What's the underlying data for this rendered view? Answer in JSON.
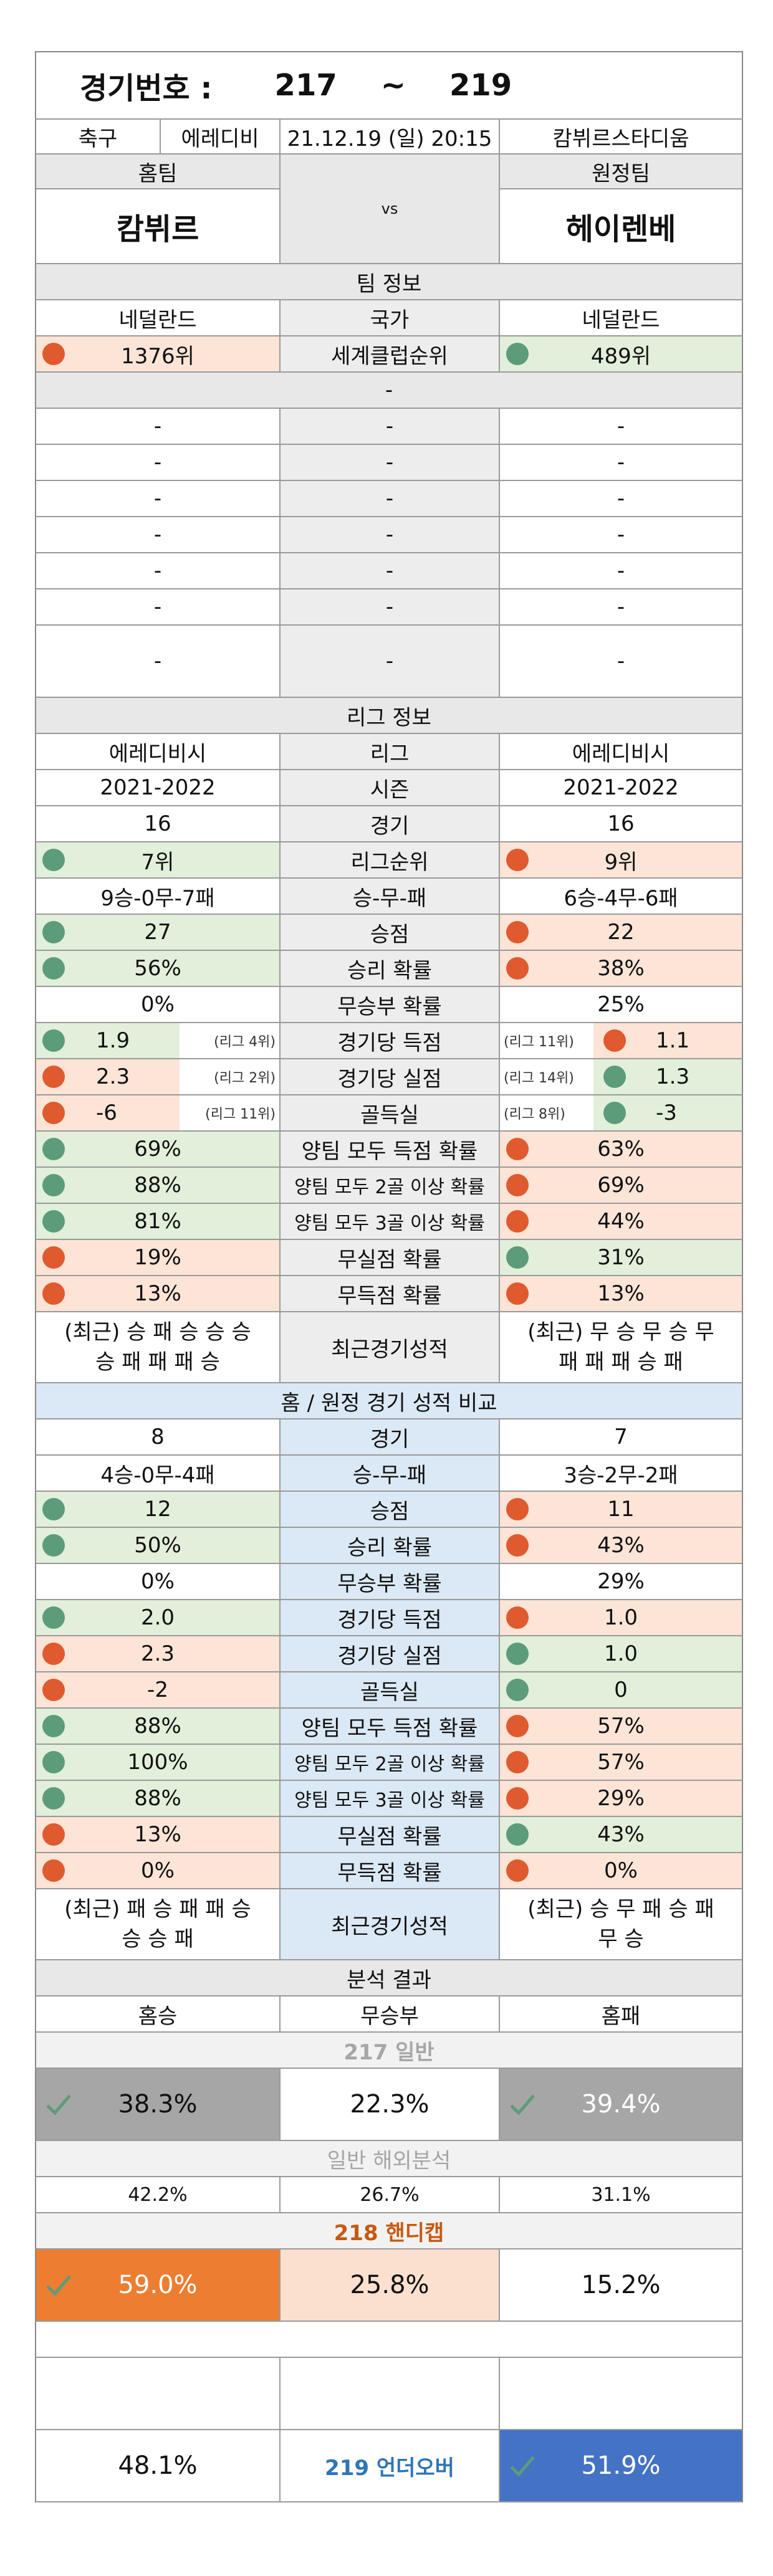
{
  "header": {
    "label": "경기번호 :",
    "from": "217",
    "tilde": "~",
    "to": "219"
  },
  "match": {
    "sport": "축구",
    "league": "에레디비",
    "datetime": "21.12.19 (일) 20:15",
    "venue": "캄뷔르스타디움"
  },
  "teams": {
    "home_label": "홈팀",
    "away_label": "원정팀",
    "home": "캄뷔르",
    "vs": "vs",
    "away": "헤이렌베"
  },
  "team_info": {
    "title": "팀 정보",
    "country": {
      "home": "네덜란드",
      "label": "국가",
      "away": "네덜란드"
    },
    "ranking": {
      "home": "1376위",
      "label": "세계클럽순위",
      "away": "489위"
    },
    "dash": "-"
  },
  "league_info": {
    "title": "리그 정보",
    "league": {
      "home": "에레디비시",
      "label": "리그",
      "away": "에레디비시"
    },
    "season": {
      "home": "2021-2022",
      "label": "시즌",
      "away": "2021-2022"
    },
    "games": {
      "home": "16",
      "label": "경기",
      "away": "16"
    },
    "rank": {
      "home": "7위",
      "label": "리그순위",
      "away": "9위"
    },
    "wdl": {
      "home": "9승-0무-7패",
      "label": "승-무-패",
      "away": "6승-4무-6패"
    },
    "points": {
      "home": "27",
      "label": "승점",
      "away": "22"
    },
    "win_prob": {
      "home": "56%",
      "label": "승리 확률",
      "away": "38%"
    },
    "draw_prob": {
      "home": "0%",
      "label": "무승부 확률",
      "away": "25%"
    },
    "scored": {
      "home": "1.9",
      "home_rank": "(리그 4위)",
      "label": "경기당 득점",
      "away_rank": "(리그 11위)",
      "away": "1.1"
    },
    "conceded": {
      "home": "2.3",
      "home_rank": "(리그 2위)",
      "label": "경기당 실점",
      "away_rank": "(리그 14위)",
      "away": "1.3"
    },
    "diff": {
      "home": "-6",
      "home_rank": "(리그 11위)",
      "label": "골득실",
      "away_rank": "(리그 8위)",
      "away": "-3"
    },
    "btts": {
      "home": "69%",
      "label": "양팀 모두 득점 확률",
      "away": "63%"
    },
    "btts2": {
      "home": "88%",
      "label": "양팀 모두 2골 이상 확률",
      "away": "69%"
    },
    "btts3": {
      "home": "81%",
      "label": "양팀 모두 3골 이상 확률",
      "away": "44%"
    },
    "clean": {
      "home": "19%",
      "label": "무실점 확률",
      "away": "31%"
    },
    "noscore": {
      "home": "13%",
      "label": "무득점 확률",
      "away": "13%"
    },
    "recent": {
      "home1": "(최근) 승 패 승 승 승",
      "home2": "승 패 패 패 승",
      "label": "최근경기성적",
      "away1": "(최근) 무 승 무 승 무",
      "away2": "패 패 패 승 패"
    }
  },
  "ha_info": {
    "title": "홈 / 원정 경기 성적 비교",
    "games": {
      "home": "8",
      "label": "경기",
      "away": "7"
    },
    "wdl": {
      "home": "4승-0무-4패",
      "label": "승-무-패",
      "away": "3승-2무-2패"
    },
    "points": {
      "home": "12",
      "label": "승점",
      "away": "11"
    },
    "win_prob": {
      "home": "50%",
      "label": "승리 확률",
      "away": "43%"
    },
    "draw_prob": {
      "home": "0%",
      "label": "무승부 확률",
      "away": "29%"
    },
    "scored": {
      "home": "2.0",
      "label": "경기당 득점",
      "away": "1.0"
    },
    "conceded": {
      "home": "2.3",
      "label": "경기당 실점",
      "away": "1.0"
    },
    "diff": {
      "home": "-2",
      "label": "골득실",
      "away": "0"
    },
    "btts": {
      "home": "88%",
      "label": "양팀 모두 득점 확률",
      "away": "57%"
    },
    "btts2": {
      "home": "100%",
      "label": "양팀 모두 2골 이상 확률",
      "away": "57%"
    },
    "btts3": {
      "home": "88%",
      "label": "양팀 모두 3골 이상 확률",
      "away": "29%"
    },
    "clean": {
      "home": "13%",
      "label": "무실점 확률",
      "away": "43%"
    },
    "noscore": {
      "home": "0%",
      "label": "무득점 확률",
      "away": "0%"
    },
    "recent": {
      "home1": "(최근) 패 승 패 패 승",
      "home2": "승 승 패",
      "label": "최근경기성적",
      "away1": "(최근) 승 무 패 승 패",
      "away2": "무 승"
    }
  },
  "analysis": {
    "title": "분석 결과",
    "cols": {
      "home": "홈승",
      "draw": "무승부",
      "away": "홈패"
    },
    "general_title": "217 일반",
    "general": {
      "home": "38.3%",
      "draw": "22.3%",
      "away": "39.4%"
    },
    "overseas_title": "일반 해외분석",
    "overseas": {
      "home": "42.2%",
      "draw": "26.7%",
      "away": "31.1%"
    },
    "handicap_title": "218 핸디캡",
    "handicap": {
      "home": "59.0%",
      "draw": "25.8%",
      "away": "15.2%"
    },
    "ou": {
      "under": "48.1%",
      "label": "219 언더오버",
      "over": "51.9%"
    }
  },
  "colors": {
    "green": "#e2efda",
    "pink": "#fce4d6",
    "blue": "#dbe8f5",
    "orange": "#ed7d31",
    "over_blue": "#4472c4",
    "grey_box": "#a6a6a6"
  }
}
